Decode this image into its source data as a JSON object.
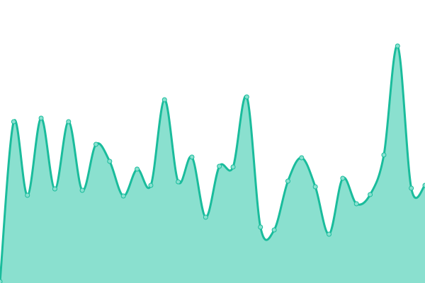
{
  "chart_data": {
    "type": "area",
    "title": "",
    "xlabel": "",
    "ylabel": "",
    "grid": false,
    "axes_visible": false,
    "smooth": true,
    "ylim": [
      0,
      400
    ],
    "x": [
      0,
      1,
      2,
      3,
      4,
      5,
      6,
      7,
      8,
      9,
      10,
      11,
      12,
      13,
      14,
      15,
      16,
      17,
      18,
      19,
      20,
      21,
      22,
      23,
      24,
      25,
      26,
      27,
      28,
      29,
      30,
      31
    ],
    "values": [
      2,
      228,
      124,
      233,
      133,
      228,
      131,
      196,
      172,
      123,
      161,
      138,
      259,
      143,
      178,
      93,
      165,
      164,
      263,
      79,
      75,
      144,
      177,
      136,
      69,
      148,
      112,
      125,
      181,
      335,
      134,
      138
    ],
    "colors": {
      "line": "#1abc9c",
      "fill": "#8ae0cf",
      "point_fill": "#88e0cf",
      "point_stroke": "#1abc9c"
    }
  }
}
